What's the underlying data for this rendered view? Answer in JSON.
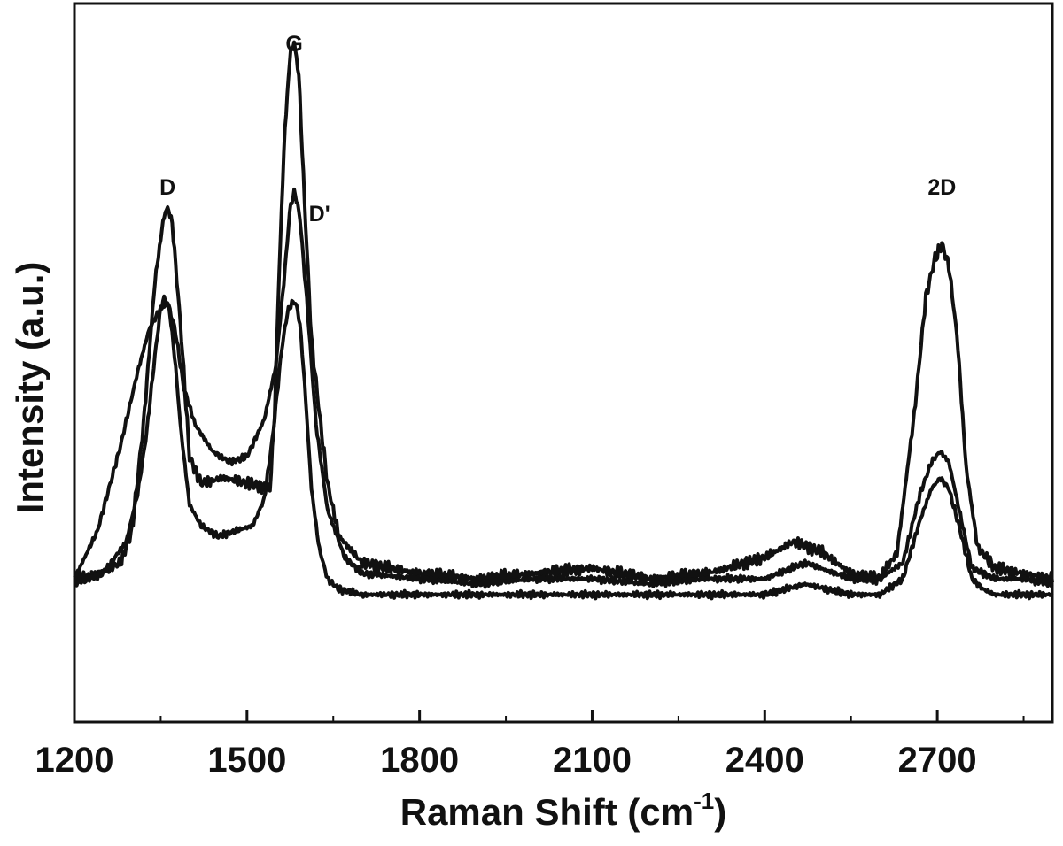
{
  "chart_data": {
    "type": "line",
    "xlabel": "Raman Shift (cm",
    "xlabel_sup": "-1",
    "xlabel_close": ")",
    "ylabel": "Intensity (a.u.)",
    "xlim": [
      1200,
      2900
    ],
    "x_ticks": [
      "1200",
      "1500",
      "1800",
      "2100",
      "2400",
      "2700"
    ],
    "y_ticks_shown": false,
    "grid": false,
    "legend": "none",
    "line_color": "#111111",
    "annotations": [
      {
        "text": "D",
        "x": 1362,
        "y": 100
      },
      {
        "text": "G",
        "x": 1582,
        "y": 127
      },
      {
        "text": "D'",
        "x": 1626,
        "y": 95
      },
      {
        "text": "2D",
        "x": 2708,
        "y": 100
      }
    ],
    "series": [
      {
        "x": [
          1200,
          1240,
          1280,
          1300,
          1320,
          1340,
          1355,
          1362,
          1370,
          1385,
          1400,
          1420,
          1460,
          1500,
          1540,
          1548,
          1555,
          1565,
          1575,
          1582,
          1590,
          1600,
          1612,
          1625,
          1640,
          1660,
          1700,
          1800,
          1900,
          2000,
          2100,
          2200,
          2300,
          2400,
          2450,
          2500,
          2550,
          2600,
          2630,
          2660,
          2680,
          2695,
          2708,
          2720,
          2735,
          2750,
          2770,
          2800,
          2850,
          2900
        ],
        "values": [
          27,
          28,
          30,
          36,
          56,
          83,
          95,
          97,
          94,
          74,
          50,
          45,
          46,
          45,
          44,
          58,
          82,
          110,
          126,
          128,
          122,
          98,
          72,
          59,
          45,
          35,
          30,
          28,
          27,
          28,
          29,
          27,
          28,
          31,
          34,
          32,
          28,
          27,
          32,
          58,
          80,
          87,
          90,
          86,
          72,
          48,
          33,
          29,
          28,
          27
        ]
      },
      {
        "x": [
          1200,
          1240,
          1280,
          1310,
          1330,
          1350,
          1362,
          1375,
          1390,
          1410,
          1440,
          1470,
          1500,
          1530,
          1550,
          1565,
          1575,
          1583,
          1592,
          1605,
          1620,
          1640,
          1670,
          1700,
          1800,
          1900,
          2000,
          2100,
          2200,
          2300,
          2400,
          2470,
          2550,
          2600,
          2640,
          2670,
          2690,
          2705,
          2720,
          2740,
          2760,
          2780,
          2800,
          2850,
          2900
        ],
        "values": [
          27,
          36,
          52,
          66,
          74,
          78,
          79,
          74,
          63,
          56,
          51,
          49,
          50,
          57,
          67,
          84,
          97,
          100,
          95,
          78,
          56,
          40,
          31,
          28,
          27,
          26,
          27,
          27,
          26,
          27,
          27,
          30,
          27,
          27,
          30,
          43,
          49,
          51,
          49,
          39,
          29,
          28,
          27,
          27,
          26
        ]
      },
      {
        "x": [
          1200,
          1250,
          1290,
          1310,
          1325,
          1340,
          1350,
          1357,
          1365,
          1375,
          1385,
          1400,
          1420,
          1450,
          1480,
          1510,
          1530,
          1545,
          1560,
          1570,
          1578,
          1585,
          1592,
          1600,
          1612,
          1625,
          1640,
          1660,
          1700,
          1800,
          1900,
          2000,
          2100,
          2200,
          2300,
          2400,
          2470,
          2550,
          2600,
          2640,
          2670,
          2690,
          2705,
          2720,
          2740,
          2760,
          2780,
          2800,
          2850,
          2900
        ],
        "values": [
          26,
          28,
          34,
          43,
          54,
          69,
          78,
          80,
          78,
          68,
          55,
          41,
          37,
          35,
          36,
          37,
          42,
          54,
          70,
          77,
          79,
          79,
          75,
          64,
          44,
          33,
          27,
          25,
          24,
          24,
          24,
          24,
          24,
          24,
          24,
          24,
          26,
          24,
          24,
          27,
          38,
          44,
          46,
          44,
          36,
          27,
          25,
          24,
          24,
          24
        ]
      }
    ]
  }
}
